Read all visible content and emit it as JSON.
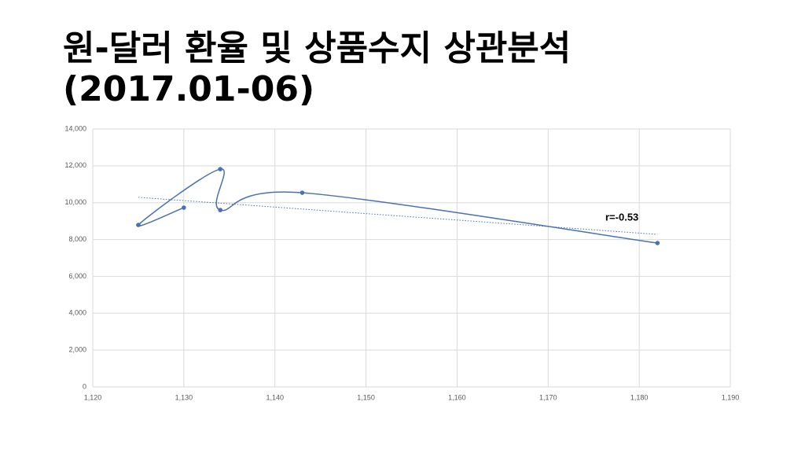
{
  "title": [
    "원-달러 환율 및 상품수지 상관분석",
    "(2017.01-06)"
  ],
  "chart_data": {
    "type": "scatter",
    "x": [
      1130,
      1125,
      1134,
      1134,
      1143,
      1182
    ],
    "values": [
      9730,
      8790,
      11820,
      9600,
      10540,
      7810
    ],
    "color": "#4a72b0",
    "smooth": true,
    "trendline": {
      "x": [
        1125,
        1182
      ],
      "y": [
        10290,
        8280
      ]
    },
    "annotation": "r=-0.53",
    "xlim": [
      1120,
      1190
    ],
    "xticks": [
      {
        "value": 1120,
        "label": "1,120"
      },
      {
        "value": 1130,
        "label": "1,130"
      },
      {
        "value": 1140,
        "label": "1,140"
      },
      {
        "value": 1150,
        "label": "1,150"
      },
      {
        "value": 1160,
        "label": "1,160"
      },
      {
        "value": 1170,
        "label": "1,170"
      },
      {
        "value": 1180,
        "label": "1,180"
      },
      {
        "value": 1190,
        "label": "1,190"
      }
    ],
    "ylim": [
      0,
      14000
    ],
    "yticks": [
      0,
      {
        "value": 2000,
        "label": "2,000"
      },
      {
        "value": 4000,
        "label": "4,000"
      },
      {
        "value": 6000,
        "label": "6,000"
      },
      {
        "value": 8000,
        "label": "8,000"
      },
      {
        "value": 10000,
        "label": "10,000"
      },
      {
        "value": 12000,
        "label": "12,000"
      },
      {
        "value": 14000,
        "label": "14,000"
      }
    ],
    "grid": true
  }
}
